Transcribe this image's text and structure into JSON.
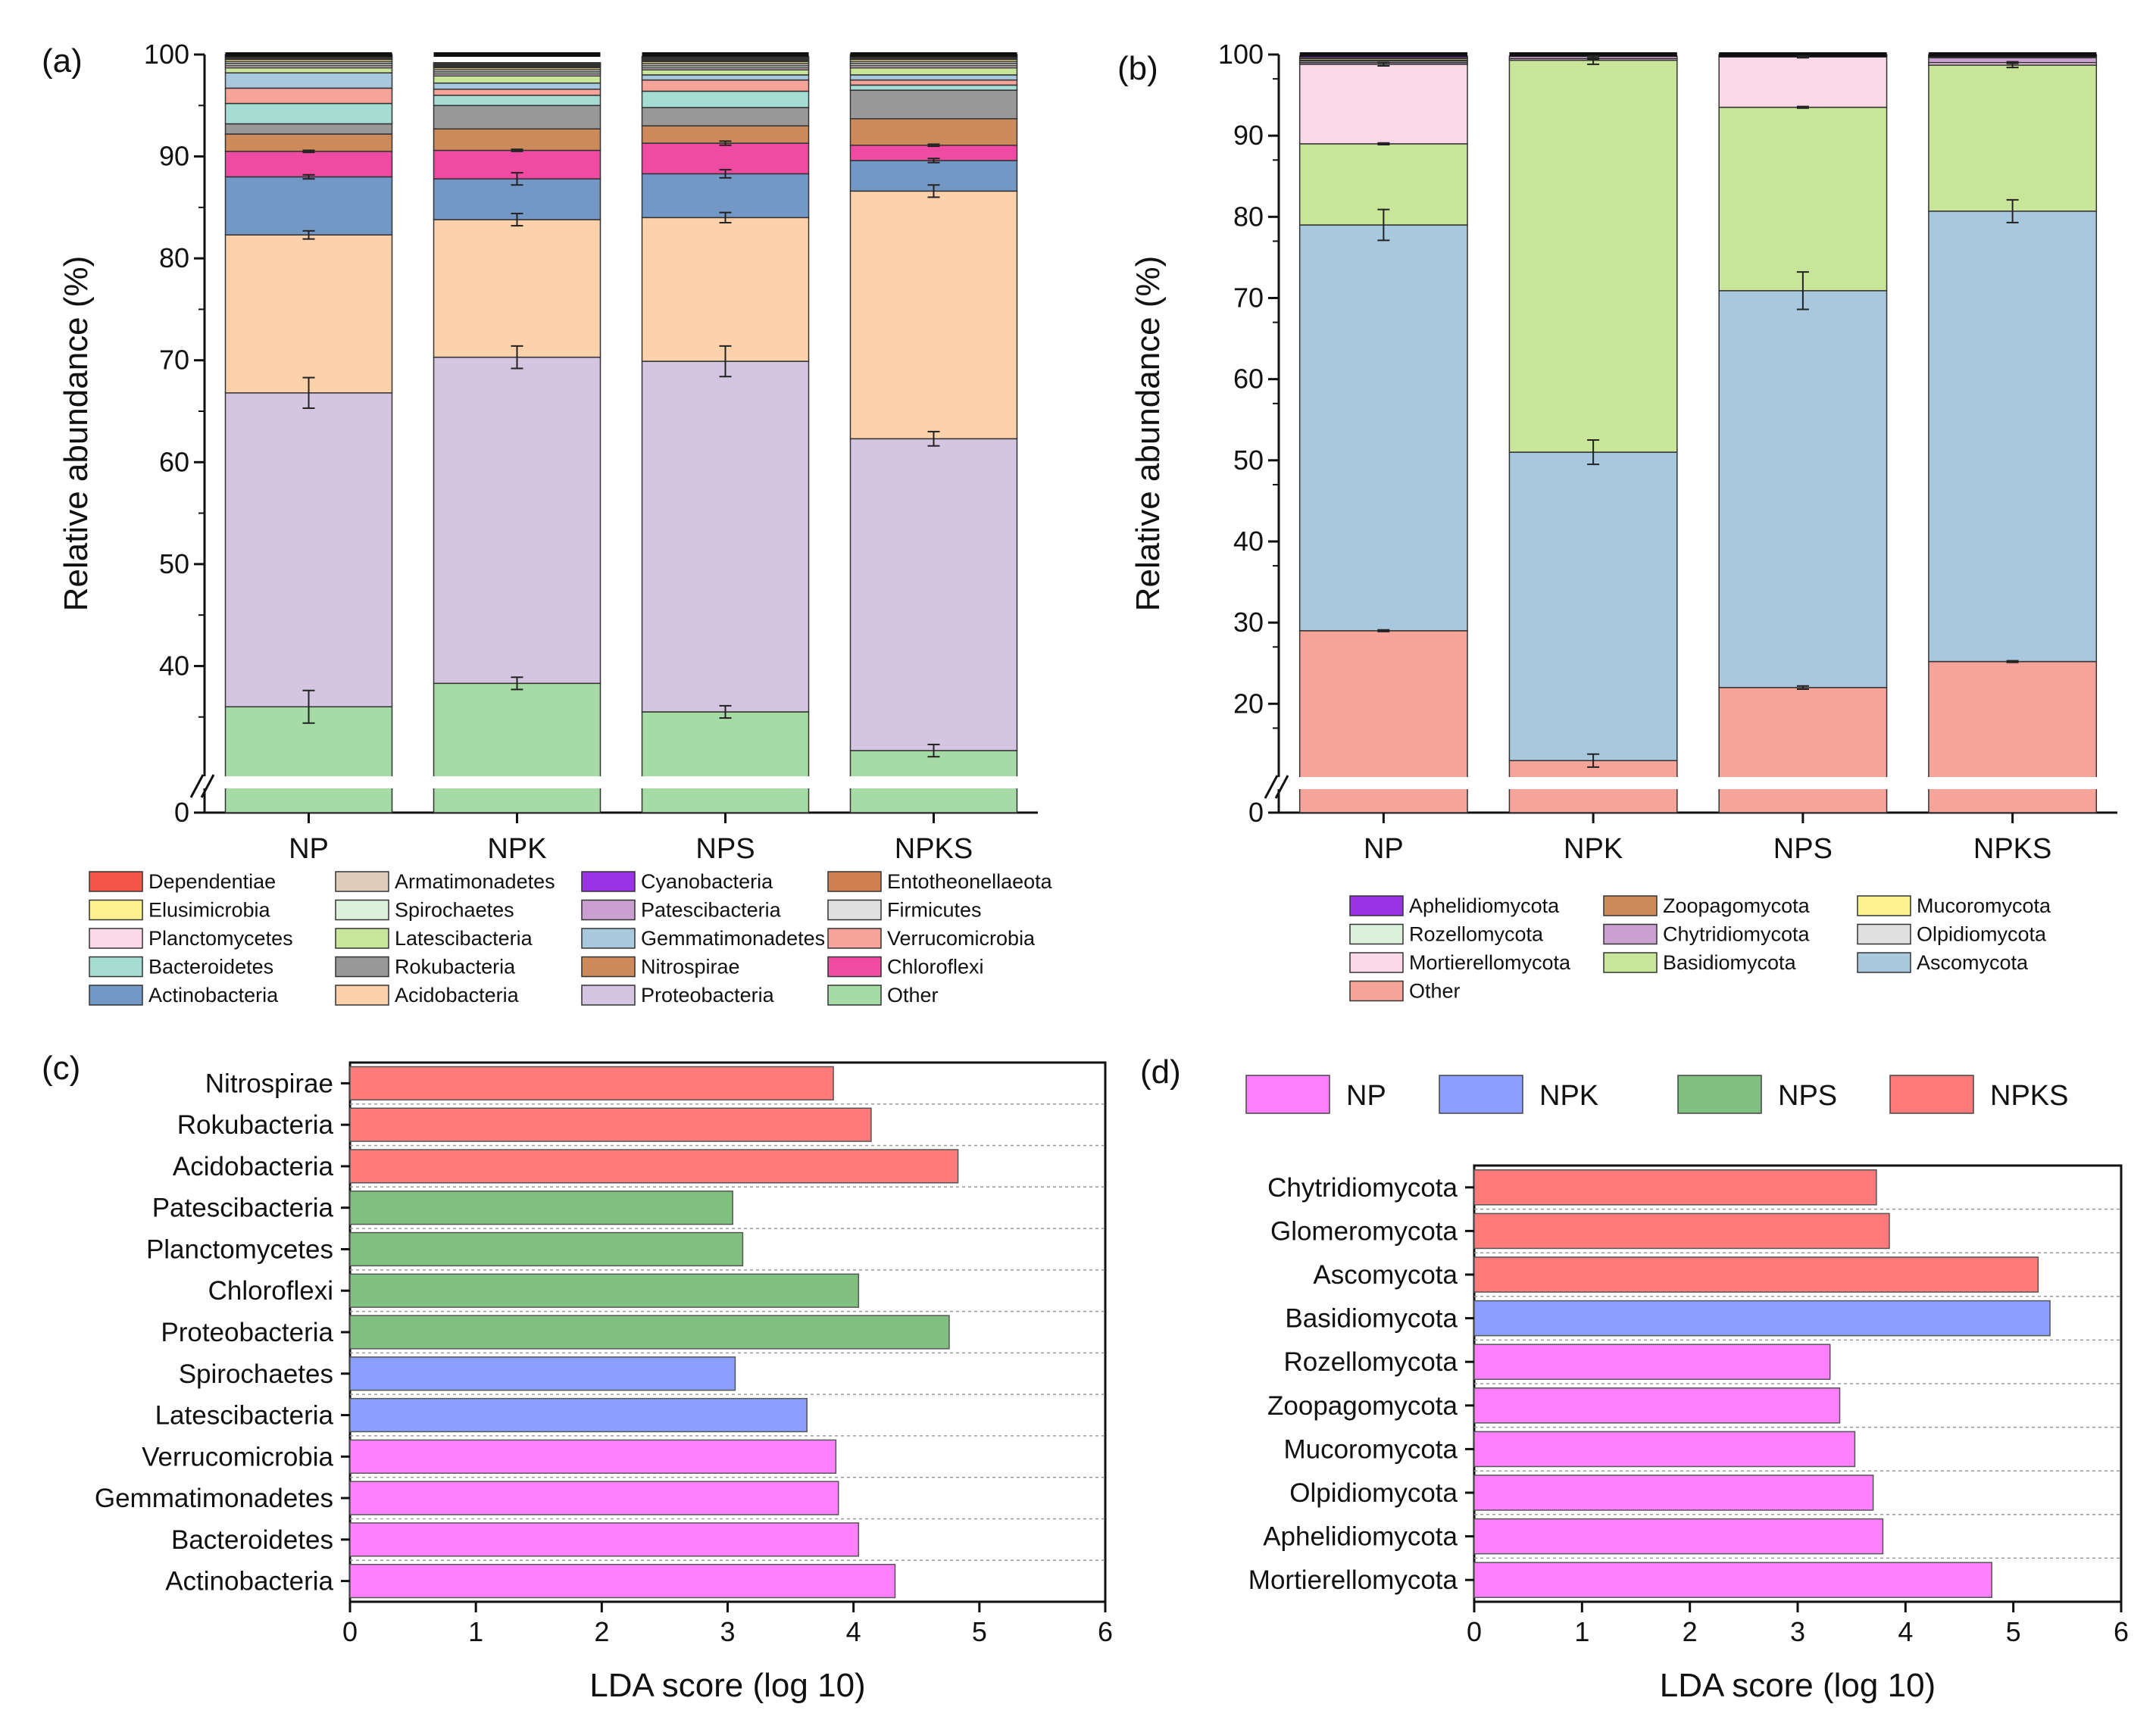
{
  "panel_labels": [
    "(a)",
    "(b)",
    "(c)",
    "(d)"
  ],
  "chart_data": [
    {
      "id": "a",
      "type": "bar",
      "stacked": true,
      "xlabel": "",
      "ylabel": "Relative abundance (%)",
      "ylim": [
        0,
        100
      ],
      "axis_break": [
        0,
        30
      ],
      "yticks": [
        0,
        40,
        50,
        60,
        70,
        80,
        90,
        100
      ],
      "categories": [
        "NP",
        "NPK",
        "NPS",
        "NPKS"
      ],
      "series": [
        {
          "name": "Other",
          "color": "#A6DBA6",
          "values": [
            36.0,
            38.3,
            35.5,
            31.7
          ]
        },
        {
          "name": "Proteobacteria",
          "color": "#D4C5E0",
          "values": [
            30.8,
            32.0,
            34.4,
            30.6
          ]
        },
        {
          "name": "Acidobacteria",
          "color": "#FDD1AA",
          "values": [
            15.5,
            13.5,
            14.1,
            24.3
          ]
        },
        {
          "name": "Actinobacteria",
          "color": "#7398C6",
          "values": [
            5.7,
            4.0,
            4.3,
            3.0
          ]
        },
        {
          "name": "Chloroflexi",
          "color": "#EF4BA3",
          "values": [
            2.5,
            2.8,
            3.0,
            1.5
          ]
        },
        {
          "name": "Nitrospirae",
          "color": "#CD8A5B",
          "values": [
            1.7,
            2.1,
            1.7,
            2.6
          ]
        },
        {
          "name": "Rokubacteria",
          "color": "#999999",
          "values": [
            1.0,
            2.3,
            1.8,
            2.8
          ]
        },
        {
          "name": "Bacteroidetes",
          "color": "#A6DDD3",
          "values": [
            2.0,
            1.0,
            1.6,
            0.5
          ]
        },
        {
          "name": "Verrucomicrobia",
          "color": "#F6A49A",
          "values": [
            1.5,
            0.6,
            1.1,
            0.5
          ]
        },
        {
          "name": "Gemmatimonadetes",
          "color": "#A8C8DE",
          "values": [
            1.5,
            0.6,
            0.5,
            0.5
          ]
        },
        {
          "name": "Latescibacteria",
          "color": "#C9E59A",
          "values": [
            0.5,
            0.7,
            0.5,
            0.7
          ]
        },
        {
          "name": "Planctomycetes",
          "color": "#FAD8E8",
          "values": [
            0.2,
            0.2,
            0.2,
            0.2
          ]
        },
        {
          "name": "Spirochaetes",
          "color": "#DDF0DC",
          "values": [
            0.2,
            0.2,
            0.2,
            0.2
          ]
        },
        {
          "name": "Firmicutes",
          "color": "#E0E0E0",
          "values": [
            0.2,
            0.2,
            0.2,
            0.2
          ]
        },
        {
          "name": "Elusimicrobia",
          "color": "#FDF08F",
          "values": [
            0.2,
            0.2,
            0.2,
            0.2
          ]
        },
        {
          "name": "Entotheonellaeota",
          "color": "#D08050",
          "values": [
            0.1,
            0.1,
            0.1,
            0.1
          ]
        },
        {
          "name": "Patescibacteria",
          "color": "#C9A0D0",
          "values": [
            0.1,
            0.1,
            0.1,
            0.1
          ]
        },
        {
          "name": "Cyanobacteria",
          "color": "#9933E6",
          "values": [
            0.1,
            0.1,
            0.1,
            0.1
          ]
        },
        {
          "name": "Armatimonadetes",
          "color": "#DDCCB8",
          "values": [
            0.1,
            0.1,
            0.1,
            0.1
          ]
        },
        {
          "name": "Dependentiae",
          "color": "#F5564A",
          "values": [
            0.1,
            0.1,
            0.1,
            0.1
          ]
        }
      ],
      "error_bars": [
        {
          "series": "Other",
          "err": [
            1.6,
            0.6,
            0.6,
            0.6
          ]
        },
        {
          "series": "Proteobacteria",
          "err": [
            1.5,
            1.1,
            1.5,
            0.7
          ]
        },
        {
          "series": "Acidobacteria",
          "err": [
            0.4,
            0.6,
            0.5,
            0.6
          ]
        },
        {
          "series": "Actinobacteria",
          "err": [
            0.2,
            0.6,
            0.4,
            0.2
          ]
        },
        {
          "series": "Chloroflexi",
          "err": [
            0.1,
            0.1,
            0.2,
            0.1
          ]
        }
      ],
      "legend_order": [
        "Dependentiae",
        "Armatimonadetes",
        "Cyanobacteria",
        "Entotheonellaeota",
        "Elusimicrobia",
        "Spirochaetes",
        "Patescibacteria",
        "Firmicutes",
        "Planctomycetes",
        "Latescibacteria",
        "Gemmatimonadetes",
        "Verrucomicrobia",
        "Bacteroidetes",
        "Rokubacteria",
        "Nitrospirae",
        "Chloroflexi",
        "Actinobacteria",
        "Acidobacteria",
        "Proteobacteria",
        "Other"
      ]
    },
    {
      "id": "b",
      "type": "bar",
      "stacked": true,
      "xlabel": "",
      "ylabel": "Relative abundance (%)",
      "ylim": [
        0,
        100
      ],
      "axis_break": [
        0,
        12
      ],
      "yticks": [
        0,
        20,
        30,
        40,
        50,
        60,
        70,
        80,
        90,
        100
      ],
      "categories": [
        "NP",
        "NPK",
        "NPS",
        "NPKS"
      ],
      "series": [
        {
          "name": "Other",
          "color": "#F6A49A",
          "values": [
            29.0,
            13.0,
            22.0,
            25.2
          ]
        },
        {
          "name": "Ascomycota",
          "color": "#A8C8DE",
          "values": [
            50.0,
            38.0,
            48.9,
            55.5
          ]
        },
        {
          "name": "Basidiomycota",
          "color": "#C9E59A",
          "values": [
            10.0,
            48.3,
            22.6,
            18.0
          ]
        },
        {
          "name": "Mortierellomycota",
          "color": "#FAD8E8",
          "values": [
            9.8,
            0.2,
            6.2,
            0.3
          ]
        },
        {
          "name": "Chytridiomycota",
          "color": "#C9A0D0",
          "values": [
            0.2,
            0.3,
            0.1,
            0.6
          ]
        },
        {
          "name": "Rozellomycota",
          "color": "#DDF0DC",
          "values": [
            0.2,
            0.0,
            0.1,
            0.1
          ]
        },
        {
          "name": "Olpidiomycota",
          "color": "#E0E0E0",
          "values": [
            0.1,
            0.0,
            0.1,
            0.1
          ]
        },
        {
          "name": "Mucoromycota",
          "color": "#FDF08F",
          "values": [
            0.2,
            0.0,
            0.0,
            0.1
          ]
        },
        {
          "name": "Zoopagomycota",
          "color": "#CD8A5B",
          "values": [
            0.1,
            0.0,
            0.0,
            0.0
          ]
        },
        {
          "name": "Aphelidiomycota",
          "color": "#9933E6",
          "values": [
            0.2,
            0.0,
            0.0,
            0.1
          ]
        }
      ],
      "error_bars": [
        {
          "series": "Other",
          "err": [
            0.1,
            0.8,
            0.2,
            0.1
          ]
        },
        {
          "series": "Ascomycota",
          "err": [
            1.9,
            1.5,
            2.3,
            1.4
          ]
        },
        {
          "series": "Basidiomycota",
          "err": [
            0.1,
            0.5,
            0.1,
            0.3
          ]
        },
        {
          "series": "Mortierellomycota",
          "err": [
            0.2,
            0.1,
            0.1,
            0.1
          ]
        }
      ],
      "legend_order": [
        "Aphelidiomycota",
        "Zoopagomycota",
        "Mucoromycota",
        "Rozellomycota",
        "Chytridiomycota",
        "Olpidiomycota",
        "Mortierellomycota",
        "Basidiomycota",
        "Ascomycota",
        "Other"
      ]
    },
    {
      "id": "c",
      "type": "bar",
      "orientation": "horizontal",
      "xlabel": "LDA score (log 10)",
      "ylabel": "",
      "xlim": [
        0,
        6
      ],
      "xticks": [
        0,
        1,
        2,
        3,
        4,
        5,
        6
      ],
      "categories": [
        "Nitrospirae",
        "Rokubacteria",
        "Acidobacteria",
        "Patescibacteria",
        "Planctomycetes",
        "Chloroflexi",
        "Proteobacteria",
        "Spirochaetes",
        "Latescibacteria",
        "Verrucomicrobia",
        "Gemmatimonadetes",
        "Bacteroidetes",
        "Actinobacteria"
      ],
      "values": [
        3.84,
        4.14,
        4.83,
        3.04,
        3.12,
        4.04,
        4.76,
        3.06,
        3.63,
        3.86,
        3.88,
        4.04,
        4.33
      ],
      "groups": [
        "NPKS",
        "NPKS",
        "NPKS",
        "NPS",
        "NPS",
        "NPS",
        "NPS",
        "NPK",
        "NPK",
        "NP",
        "NP",
        "NP",
        "NP"
      ]
    },
    {
      "id": "d",
      "type": "bar",
      "orientation": "horizontal",
      "xlabel": "LDA score (log 10)",
      "ylabel": "",
      "xlim": [
        0,
        6
      ],
      "xticks": [
        0,
        1,
        2,
        3,
        4,
        5,
        6
      ],
      "categories": [
        "Chytridiomycota",
        "Glomeromycota",
        "Ascomycota",
        "Basidiomycota",
        "Rozellomycota",
        "Zoopagomycota",
        "Mucoromycota",
        "Olpidiomycota",
        "Aphelidiomycota",
        "Mortierellomycota"
      ],
      "values": [
        3.73,
        3.85,
        5.23,
        5.34,
        3.3,
        3.39,
        3.53,
        3.7,
        3.79,
        4.8
      ],
      "groups": [
        "NPKS",
        "NPKS",
        "NPKS",
        "NPK",
        "NP",
        "NP",
        "NP",
        "NP",
        "NP",
        "NP"
      ],
      "legend": [
        {
          "name": "NP",
          "color": "#FF80FF"
        },
        {
          "name": "NPK",
          "color": "#8C9EFF"
        },
        {
          "name": "NPS",
          "color": "#80C080"
        },
        {
          "name": "NPKS",
          "color": "#FF7B7B"
        }
      ]
    }
  ]
}
